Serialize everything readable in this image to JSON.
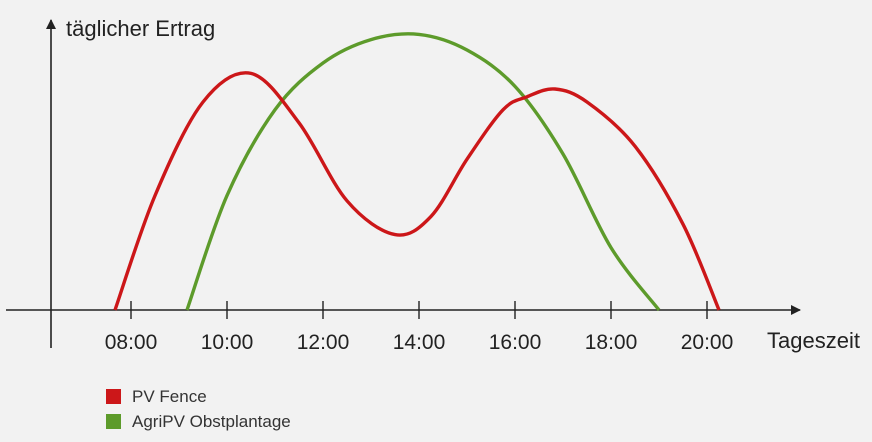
{
  "chart_data": {
    "type": "line",
    "ylabel": "täglicher Ertrag",
    "xlabel": "Tageszeit",
    "x_ticks": [
      "08:00",
      "10:00",
      "12:00",
      "14:00",
      "16:00",
      "18:00",
      "20:00"
    ],
    "xlim": [
      "06:00",
      "21:30"
    ],
    "y_ticks_shown": false,
    "grid": false,
    "legend_position": "bottom-left",
    "series": [
      {
        "name": "PV Fence",
        "color": "#cc1719",
        "x": [
          "07:40",
          "08:30",
          "09:30",
          "10:30",
          "11:30",
          "12:30",
          "13:30",
          "14:15",
          "15:00",
          "15:45",
          "16:15",
          "16:50",
          "17:30",
          "18:30",
          "19:30",
          "20:15"
        ],
        "y": [
          0,
          0.44,
          0.8,
          0.91,
          0.72,
          0.42,
          0.29,
          0.36,
          0.58,
          0.77,
          0.82,
          0.85,
          0.8,
          0.63,
          0.33,
          0
        ]
      },
      {
        "name": "AgriPV Obstplantage",
        "color": "#5d9b2b",
        "x": [
          "09:10",
          "10:00",
          "11:00",
          "12:00",
          "13:00",
          "14:00",
          "15:00",
          "16:00",
          "17:00",
          "18:00",
          "19:00"
        ],
        "y": [
          0,
          0.44,
          0.77,
          0.95,
          1.04,
          1.06,
          1.0,
          0.86,
          0.6,
          0.24,
          0
        ]
      }
    ]
  },
  "colors": {
    "background": "#f2f2f2",
    "axis": "#222222",
    "text": "#222222"
  }
}
